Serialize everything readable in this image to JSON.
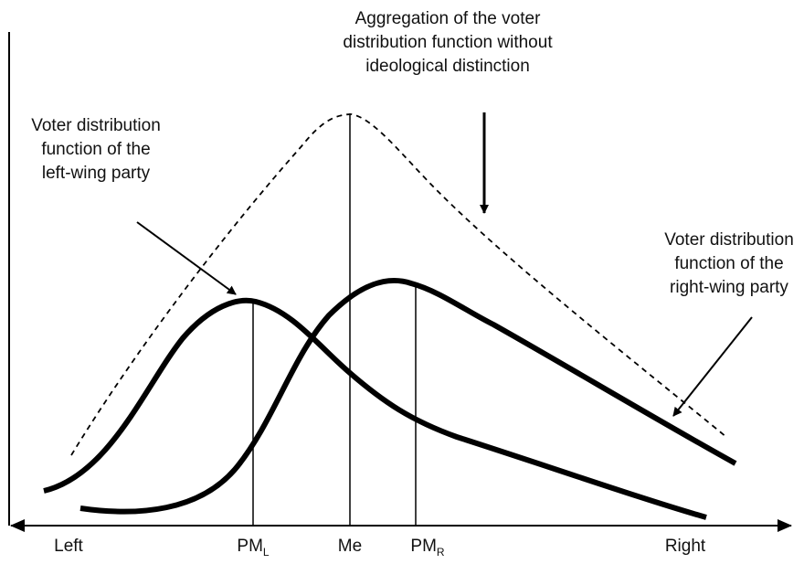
{
  "annotations": {
    "aggregate": [
      "Aggregation of the voter",
      "distribution function without",
      "ideological distinction"
    ],
    "left_party": [
      "Voter distribution",
      "function of the",
      "left-wing party"
    ],
    "right_party": [
      "Voter distribution",
      "function of the",
      "right-wing party"
    ]
  },
  "axis": {
    "left": "Left",
    "right": "Right"
  },
  "markers": {
    "pm_left": {
      "base": "PM",
      "sub": "L"
    },
    "median": "Me",
    "pm_right": {
      "base": "PM",
      "sub": "R"
    }
  }
}
